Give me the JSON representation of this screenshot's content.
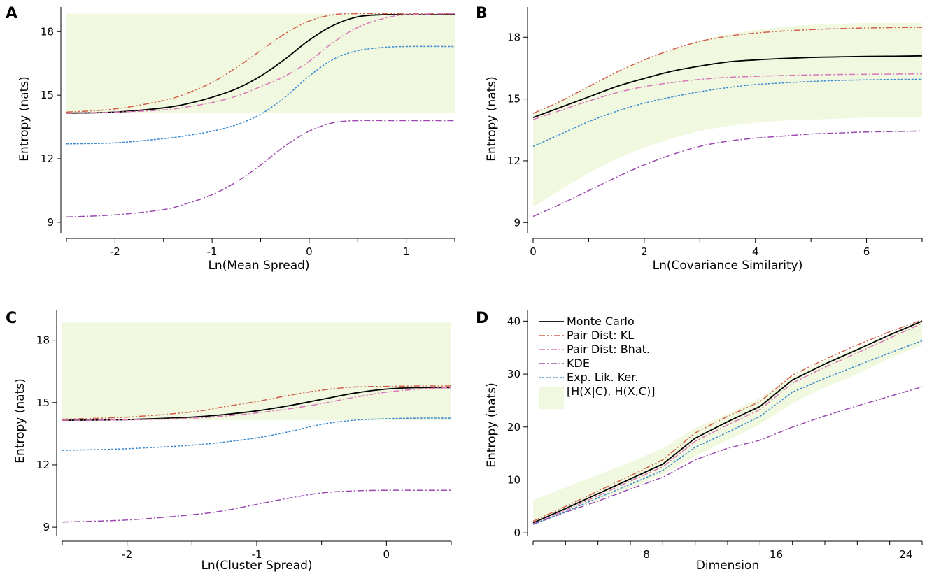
{
  "styles": {
    "band_color": "#f0f8e0",
    "Monte Carlo": {
      "color": "#000000",
      "dash": "",
      "width": 1.8
    },
    "Pair Dist: KL": {
      "color": "#d0604a",
      "dash": "9,3,2,3,2,3",
      "width": 1.5
    },
    "Pair Dist: Bhat.": {
      "color": "#d878b8",
      "dash": "9,3,2,3",
      "width": 1.5
    },
    "KDE": {
      "color": "#9a4ab0",
      "dash": "9,3,2,3",
      "width": 1.5
    },
    "Exp. Lik. Ker.": {
      "color": "#3a88d0",
      "dash": "3,2",
      "width": 1.5
    }
  },
  "legend_entries": [
    "Monte Carlo",
    "Pair Dist: KL",
    "Pair Dist: Bhat.",
    "KDE",
    "Exp. Lik. Ker.",
    "[H(X|C), H(X,C)]"
  ],
  "chart_data": [
    {
      "panel": "A",
      "type": "line",
      "xlabel": "Ln(Mean Spread)",
      "ylabel": "Entropy (nats)",
      "xlim": [
        -2.5,
        1.5
      ],
      "ylim": [
        8.5,
        19.0
      ],
      "xticks": [
        -2,
        -1,
        0,
        1
      ],
      "xticklabels": [
        "-2",
        "-1",
        "0",
        "1"
      ],
      "yticks": [
        9,
        12,
        15,
        18
      ],
      "yticklabels": [
        "9",
        "12",
        "15",
        "18"
      ],
      "x": [
        -2.5,
        -2.0,
        -1.5,
        -1.25,
        -1.0,
        -0.75,
        -0.5,
        -0.25,
        0.0,
        0.25,
        0.5,
        0.75,
        1.0,
        1.5
      ],
      "band": {
        "lower": [
          14.15,
          14.15,
          14.15,
          14.15,
          14.15,
          14.15,
          14.15,
          14.15,
          14.15,
          14.15,
          14.15,
          14.15,
          14.15,
          14.15
        ],
        "upper": [
          18.85,
          18.85,
          18.85,
          18.85,
          18.85,
          18.85,
          18.85,
          18.85,
          18.85,
          18.85,
          18.85,
          18.85,
          18.85,
          18.85
        ]
      },
      "series": [
        {
          "name": "Monte Carlo",
          "values": [
            14.15,
            14.2,
            14.4,
            14.6,
            14.9,
            15.3,
            15.9,
            16.7,
            17.6,
            18.3,
            18.7,
            18.8,
            18.8,
            18.8
          ]
        },
        {
          "name": "Pair Dist: KL",
          "values": [
            14.2,
            14.35,
            14.75,
            15.1,
            15.6,
            16.3,
            17.1,
            17.9,
            18.5,
            18.8,
            18.85,
            18.85,
            18.85,
            18.85
          ]
        },
        {
          "name": "Pair Dist: Bhat.",
          "values": [
            14.15,
            14.2,
            14.3,
            14.45,
            14.65,
            14.95,
            15.4,
            15.9,
            16.6,
            17.5,
            18.2,
            18.6,
            18.8,
            18.85
          ]
        },
        {
          "name": "KDE",
          "values": [
            9.25,
            9.35,
            9.6,
            9.9,
            10.3,
            10.9,
            11.7,
            12.6,
            13.3,
            13.7,
            13.8,
            13.8,
            13.8,
            13.8
          ]
        },
        {
          "name": "Exp. Lik. Ker.",
          "values": [
            12.7,
            12.75,
            12.95,
            13.1,
            13.3,
            13.6,
            14.1,
            14.9,
            15.9,
            16.7,
            17.1,
            17.25,
            17.3,
            17.3
          ]
        }
      ]
    },
    {
      "panel": "B",
      "type": "line",
      "xlabel": "Ln(Covariance Similarity)",
      "ylabel": "Entropy (nats)",
      "xlim": [
        0,
        7
      ],
      "ylim": [
        8.5,
        19.3
      ],
      "xticks": [
        0,
        2,
        4,
        6
      ],
      "xticklabels": [
        "0",
        "2",
        "4",
        "6"
      ],
      "yticks": [
        9,
        12,
        15,
        18
      ],
      "yticklabels": [
        "9",
        "12",
        "15",
        "18"
      ],
      "x": [
        0,
        0.5,
        1,
        1.5,
        2,
        2.5,
        3,
        3.5,
        4,
        4.5,
        5,
        5.5,
        6,
        6.5,
        7
      ],
      "band": {
        "lower": [
          9.75,
          10.6,
          11.4,
          12.1,
          12.65,
          13.1,
          13.45,
          13.7,
          13.85,
          13.95,
          14.0,
          14.05,
          14.1,
          14.1,
          14.1
        ],
        "upper": [
          14.3,
          14.9,
          15.6,
          16.3,
          16.9,
          17.4,
          17.85,
          18.15,
          18.35,
          18.5,
          18.6,
          18.65,
          18.7,
          18.7,
          18.7
        ]
      },
      "series": [
        {
          "name": "Monte Carlo",
          "values": [
            14.1,
            14.6,
            15.1,
            15.6,
            16.0,
            16.35,
            16.6,
            16.8,
            16.9,
            16.97,
            17.02,
            17.05,
            17.07,
            17.08,
            17.1
          ]
        },
        {
          "name": "Pair Dist: KL",
          "values": [
            14.3,
            14.9,
            15.6,
            16.3,
            16.9,
            17.4,
            17.8,
            18.05,
            18.2,
            18.3,
            18.37,
            18.42,
            18.45,
            18.47,
            18.48
          ]
        },
        {
          "name": "Pair Dist: Bhat.",
          "values": [
            14.0,
            14.45,
            14.9,
            15.3,
            15.6,
            15.8,
            15.95,
            16.05,
            16.1,
            16.14,
            16.17,
            16.19,
            16.2,
            16.21,
            16.22
          ]
        },
        {
          "name": "KDE",
          "values": [
            9.3,
            9.9,
            10.55,
            11.2,
            11.8,
            12.3,
            12.7,
            12.95,
            13.1,
            13.2,
            13.3,
            13.35,
            13.4,
            13.42,
            13.45
          ]
        },
        {
          "name": "Exp. Lik. Ker.",
          "values": [
            12.7,
            13.3,
            13.9,
            14.4,
            14.8,
            15.1,
            15.35,
            15.55,
            15.7,
            15.78,
            15.85,
            15.9,
            15.93,
            15.95,
            15.96
          ]
        }
      ]
    },
    {
      "panel": "C",
      "type": "line",
      "xlabel": "Ln(Cluster Spread)",
      "ylabel": "Entropy (nats)",
      "xlim": [
        -2.5,
        0.5
      ],
      "ylim": [
        8.6,
        19.3
      ],
      "xticks": [
        -2,
        -1,
        0
      ],
      "xticklabels": [
        "-2",
        "-1",
        "0"
      ],
      "yticks": [
        9,
        12,
        15,
        18
      ],
      "yticklabels": [
        "9",
        "12",
        "15",
        "18"
      ],
      "x": [
        -2.5,
        -2.0,
        -1.5,
        -1.25,
        -1.0,
        -0.75,
        -0.5,
        -0.25,
        0.0,
        0.25,
        0.5
      ],
      "band": {
        "lower": [
          14.15,
          14.15,
          14.15,
          14.15,
          14.15,
          14.15,
          14.15,
          14.15,
          14.15,
          14.15,
          14.15
        ],
        "upper": [
          18.85,
          18.85,
          18.85,
          18.85,
          18.85,
          18.85,
          18.85,
          18.85,
          18.85,
          18.85,
          18.85
        ]
      },
      "series": [
        {
          "name": "Monte Carlo",
          "values": [
            14.15,
            14.18,
            14.3,
            14.42,
            14.6,
            14.85,
            15.15,
            15.45,
            15.65,
            15.72,
            15.72
          ]
        },
        {
          "name": "Pair Dist: KL",
          "values": [
            14.2,
            14.3,
            14.55,
            14.8,
            15.05,
            15.35,
            15.6,
            15.75,
            15.78,
            15.8,
            15.8
          ]
        },
        {
          "name": "Pair Dist: Bhat.",
          "values": [
            14.15,
            14.17,
            14.25,
            14.35,
            14.5,
            14.7,
            14.95,
            15.25,
            15.5,
            15.65,
            15.72
          ]
        },
        {
          "name": "KDE",
          "values": [
            9.25,
            9.35,
            9.6,
            9.8,
            10.1,
            10.4,
            10.65,
            10.75,
            10.78,
            10.78,
            10.78
          ]
        },
        {
          "name": "Exp. Lik. Ker.",
          "values": [
            12.7,
            12.78,
            12.95,
            13.1,
            13.3,
            13.6,
            13.95,
            14.15,
            14.22,
            14.25,
            14.25
          ]
        }
      ]
    },
    {
      "panel": "D",
      "type": "line",
      "xlabel": "Dimension",
      "ylabel": "Entropy (nats)",
      "xlim": [
        1,
        25
      ],
      "ylim": [
        -0.5,
        41.5
      ],
      "xticks": [
        4,
        8,
        12,
        16,
        20,
        24
      ],
      "xticklabels": [
        "",
        "8",
        "",
        "16",
        "",
        "24"
      ],
      "yticks": [
        0,
        10,
        20,
        30,
        40
      ],
      "yticklabels": [
        "0",
        "10",
        "20",
        "30",
        "40"
      ],
      "x": [
        1,
        3,
        5,
        7,
        9,
        11,
        13,
        15,
        17,
        19,
        21,
        23,
        25
      ],
      "band": {
        "lower": [
          1.5,
          3.8,
          6.2,
          8.5,
          11.0,
          14.5,
          17.5,
          20.5,
          24.5,
          27.5,
          30.0,
          33.0,
          35.5
        ],
        "upper": [
          6.2,
          8.6,
          11.0,
          13.4,
          16.0,
          19.8,
          22.5,
          25.5,
          29.5,
          32.5,
          35.0,
          37.5,
          40.0
        ]
      },
      "series": [
        {
          "name": "Monte Carlo",
          "values": [
            1.9,
            4.6,
            7.4,
            10.2,
            13.0,
            17.9,
            21.0,
            23.9,
            28.9,
            31.9,
            34.6,
            37.4,
            40.0
          ]
        },
        {
          "name": "Pair Dist: KL",
          "values": [
            2.2,
            5.0,
            7.9,
            10.8,
            13.8,
            18.9,
            22.0,
            24.8,
            29.8,
            32.8,
            35.5,
            38.0,
            40.2
          ]
        },
        {
          "name": "Pair Dist: Bhat.",
          "values": [
            1.7,
            4.3,
            7.0,
            9.8,
            12.5,
            17.3,
            20.4,
            23.3,
            28.3,
            31.3,
            34.0,
            36.8,
            39.6
          ]
        },
        {
          "name": "KDE",
          "values": [
            1.6,
            3.9,
            6.0,
            8.3,
            10.5,
            13.8,
            16.0,
            17.5,
            20.0,
            22.1,
            24.0,
            25.8,
            27.6
          ]
        },
        {
          "name": "Exp. Lik. Ker.",
          "values": [
            1.6,
            4.0,
            6.6,
            9.2,
            11.8,
            16.2,
            19.0,
            22.0,
            26.6,
            29.2,
            31.6,
            34.0,
            36.3
          ]
        }
      ]
    }
  ]
}
